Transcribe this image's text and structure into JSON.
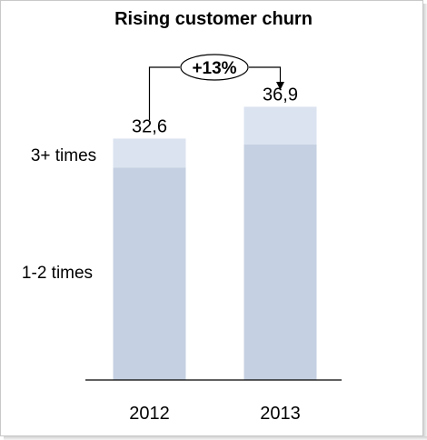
{
  "chart_data": {
    "type": "bar",
    "stacked": true,
    "title": "Rising customer churn",
    "categories": [
      "2012",
      "2013"
    ],
    "series": [
      {
        "name": "1-2 times",
        "values": [
          28.7,
          31.8
        ],
        "color": "#c5d0e2"
      },
      {
        "name": "3+ times",
        "values": [
          3.9,
          5.1
        ],
        "color": "#dbe3f0"
      }
    ],
    "totals": [
      "32,6",
      "36,9"
    ],
    "total_values": [
      32.6,
      36.9
    ],
    "growth_label": "+13%",
    "ylim": [
      0,
      48
    ],
    "grid": false,
    "legend": "left, labels beside bars"
  }
}
